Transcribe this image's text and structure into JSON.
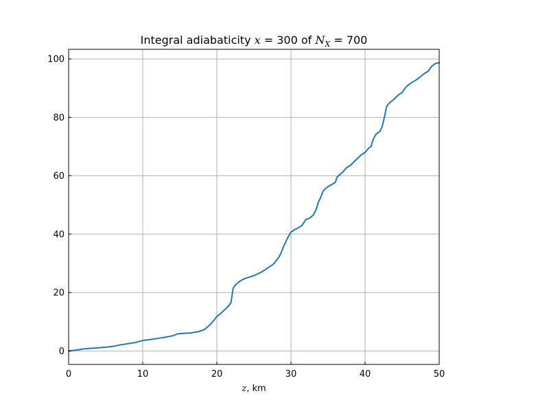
{
  "chart_data": {
    "type": "line",
    "title": "Integral adiabaticity x = 300 of N_X = 700",
    "title_parts": {
      "prefix": "Integral adiabaticity ",
      "x_var": "x",
      "x_eq": " = 300 of ",
      "n_var": "N",
      "n_sub": "X",
      "n_eq": " = 700"
    },
    "xlabel": "z, km",
    "xlabel_parts": {
      "var": "z",
      "unit": ", km"
    },
    "ylabel": "",
    "xlim": [
      0,
      50
    ],
    "ylim": [
      -4.6,
      103.3
    ],
    "xticks": [
      0,
      10,
      20,
      30,
      40,
      50
    ],
    "yticks": [
      0,
      20,
      40,
      60,
      80,
      100
    ],
    "grid": true,
    "series": [
      {
        "color": "#1f77b4",
        "x": [
          0,
          1,
          2,
          3,
          4,
          5,
          6,
          7,
          8,
          9,
          10,
          11,
          12,
          13,
          14,
          14.8,
          15.5,
          16.5,
          17.5,
          18.3,
          19,
          19.5,
          20,
          20.5,
          21,
          21.5,
          21.9,
          22.2,
          22.5,
          23,
          23.5,
          24,
          25,
          26,
          26.5,
          27,
          27.5,
          27.8,
          28.1,
          28.4,
          28.7,
          29,
          29.5,
          30,
          30.5,
          31,
          31.5,
          32,
          32.5,
          33,
          33.4,
          33.7,
          34,
          34.3,
          34.6,
          35,
          35.5,
          36,
          36.2,
          36.5,
          37,
          37.5,
          38,
          38.5,
          39,
          39.5,
          40,
          40.5,
          40.8,
          41.1,
          41.5,
          42,
          42.3,
          42.6,
          42.9,
          43.3,
          43.8,
          44.5,
          45,
          45.4,
          45.7,
          46.1,
          46.5,
          47,
          47.5,
          48,
          48.5,
          49,
          49.4,
          49.7,
          50
        ],
        "y": [
          0,
          0.3,
          0.7,
          0.9,
          1.1,
          1.3,
          1.6,
          2.1,
          2.5,
          2.9,
          3.6,
          3.9,
          4.3,
          4.7,
          5.2,
          5.9,
          6.0,
          6.2,
          6.6,
          7.3,
          8.8,
          10.2,
          11.8,
          12.8,
          14.0,
          15.2,
          16.5,
          21.5,
          22.6,
          23.7,
          24.5,
          25.0,
          25.8,
          27.0,
          27.8,
          28.7,
          29.5,
          30.2,
          31.3,
          32.2,
          33.8,
          35.8,
          38.5,
          40.7,
          41.6,
          42.2,
          43.0,
          45.0,
          45.5,
          46.5,
          48.5,
          51.0,
          52.5,
          54.5,
          55.5,
          56.3,
          57.0,
          57.8,
          59.5,
          60.2,
          61.3,
          62.8,
          63.5,
          64.8,
          66.0,
          67.2,
          68.0,
          69.5,
          70.0,
          72.5,
          74.3,
          75.2,
          76.8,
          80.0,
          83.7,
          85.0,
          86.0,
          87.7,
          88.5,
          90.0,
          90.8,
          91.6,
          92.2,
          93.0,
          94.0,
          95.0,
          95.8,
          97.5,
          98.3,
          98.6,
          98.7
        ]
      }
    ]
  }
}
